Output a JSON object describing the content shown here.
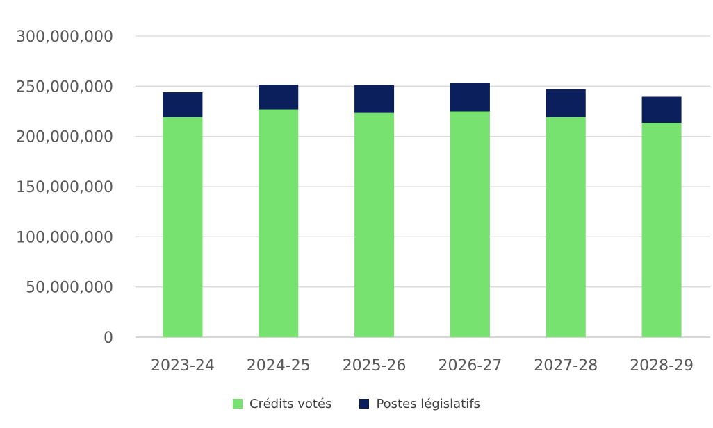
{
  "chart_data": {
    "type": "bar",
    "stacked": true,
    "title": "",
    "xlabel": "",
    "ylabel": "",
    "categories": [
      "2023-24",
      "2024-25",
      "2025-26",
      "2026-27",
      "2027-28",
      "2028-29"
    ],
    "series": [
      {
        "name": "Crédits votés",
        "color": "#77E26F",
        "values": [
          219500000,
          227000000,
          223500000,
          225000000,
          219500000,
          213500000
        ]
      },
      {
        "name": "Postes législatifs",
        "color": "#0B1F5C",
        "values": [
          24500000,
          24500000,
          27500000,
          28000000,
          27500000,
          26000000
        ]
      }
    ],
    "ylim": [
      0,
      300000000
    ],
    "yticks": [
      0,
      50000000,
      100000000,
      150000000,
      200000000,
      250000000,
      300000000
    ],
    "ytick_labels": [
      "0",
      "50,000,000",
      "100,000,000",
      "150,000,000",
      "200,000,000",
      "250,000,000",
      "300,000,000"
    ],
    "grid": true,
    "legend_position": "bottom"
  }
}
